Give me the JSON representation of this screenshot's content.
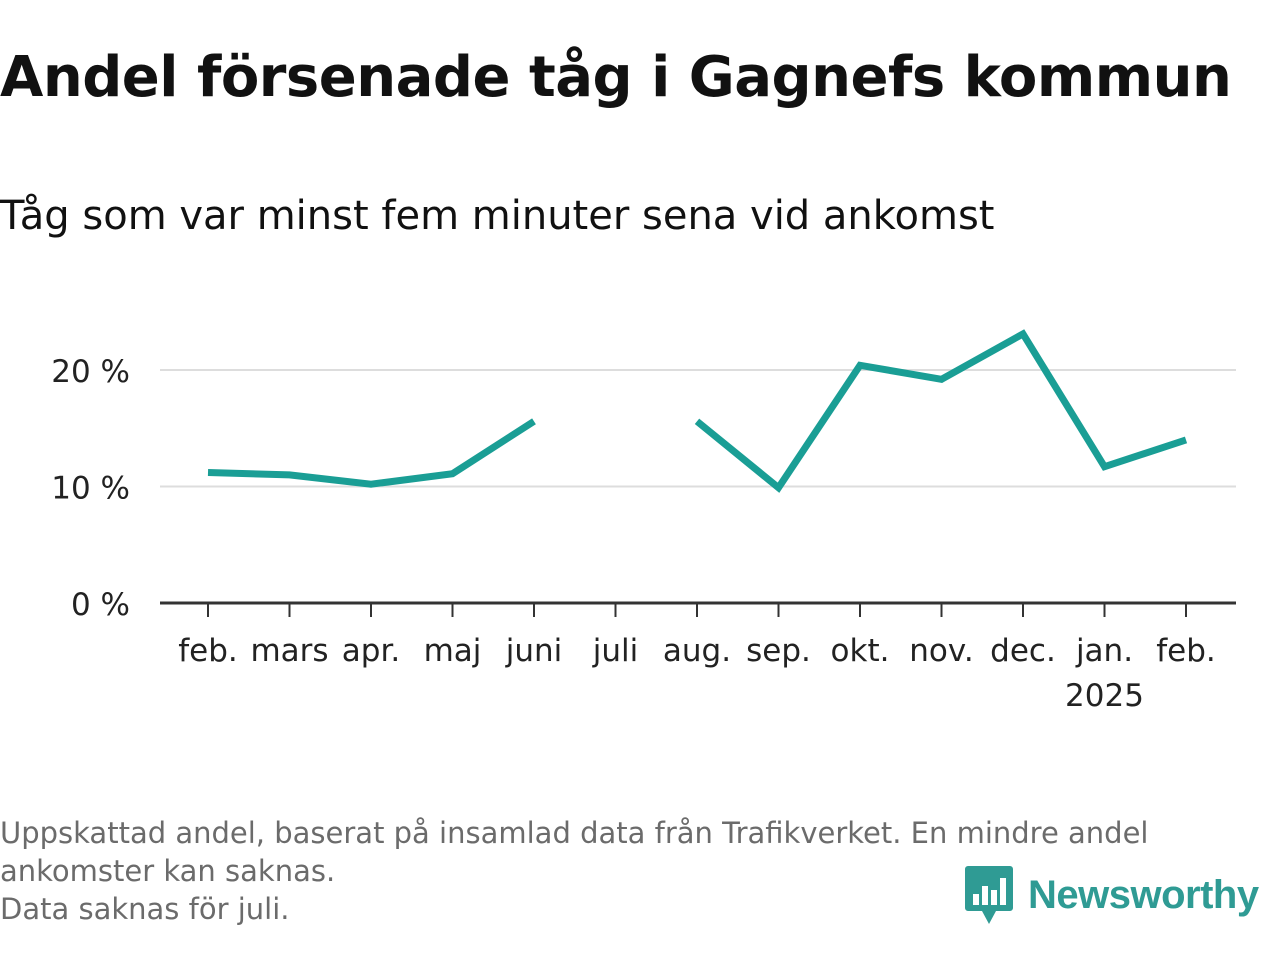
{
  "title": "Andel försenade tåg i Gagnefs kommun",
  "subtitle": "Tåg som var minst fem minuter sena vid ankomst",
  "footer": {
    "note_line1": "Uppskattad andel, baserat på insamlad data från Trafikverket. En mindre andel ankomster kan saknas.",
    "note_line2": "Data saknas för juli."
  },
  "brand": {
    "name": "Newsworthy",
    "icon": "newsworthy-logo-icon",
    "color": "#2f9b94"
  },
  "chart_data": {
    "type": "line",
    "title": "Andel försenade tåg i Gagnefs kommun",
    "subtitle": "Tåg som var minst fem minuter sena vid ankomst",
    "categories": [
      "feb.",
      "mars",
      "apr.",
      "maj",
      "juni",
      "juli",
      "aug.",
      "sep.",
      "okt.",
      "nov.",
      "dec.",
      "jan.",
      "feb."
    ],
    "year_label": {
      "category_index": 11,
      "text": "2025"
    },
    "series": [
      {
        "values": [
          11.2,
          11.0,
          10.2,
          11.1,
          15.6,
          null,
          15.6,
          9.9,
          20.4,
          19.2,
          23.1,
          11.7,
          14.0
        ],
        "color": "#1a9e95"
      }
    ],
    "ylim": [
      0,
      25
    ],
    "yticks": [
      0,
      10,
      20
    ],
    "ytick_labels": [
      "0 %",
      "10 %",
      "20 %"
    ],
    "grid": true,
    "legend": "none",
    "gridline_color": "#dddddd",
    "axis_color": "#333333"
  }
}
